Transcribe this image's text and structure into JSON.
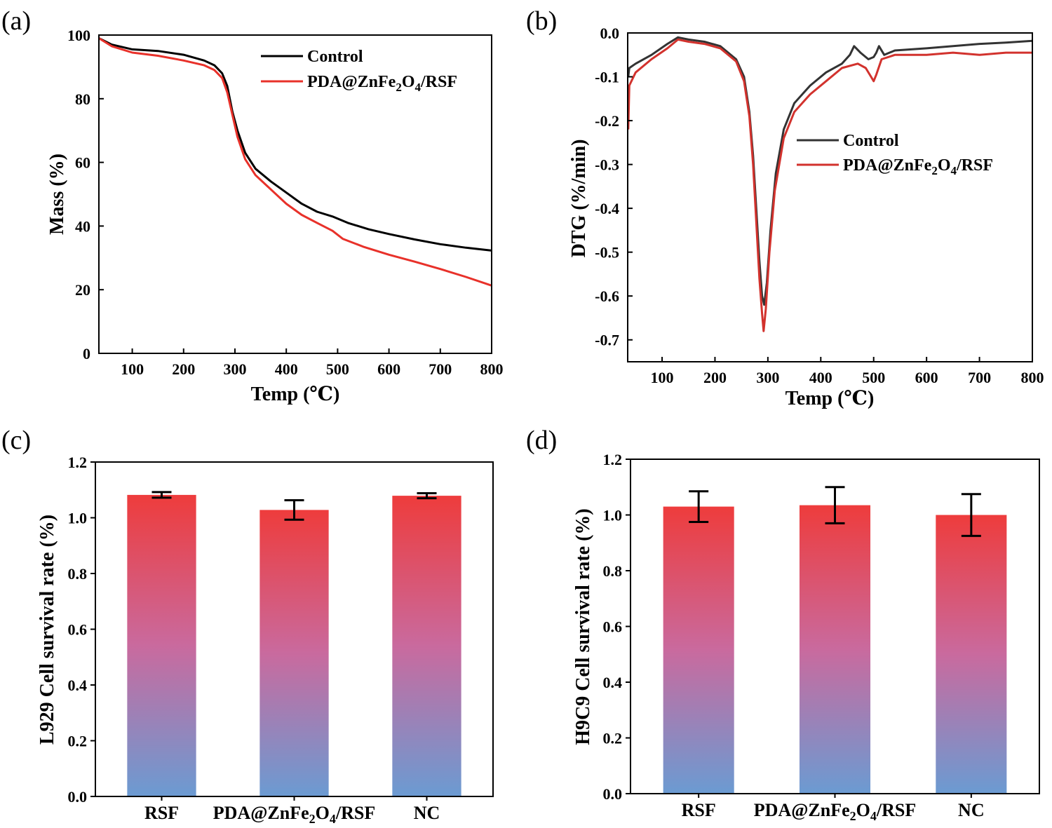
{
  "chart_data": [
    {
      "panel": "(a)",
      "type": "line",
      "xlabel": "Temp (℃)",
      "ylabel": "Mass (%)",
      "xlim": [
        35,
        800
      ],
      "ylim": [
        0,
        100
      ],
      "xticks": [
        100,
        200,
        300,
        400,
        500,
        600,
        700,
        800
      ],
      "yticks": [
        0,
        20,
        40,
        60,
        80,
        100
      ],
      "legend_position": "top-right",
      "series": [
        {
          "name": "Control",
          "color": "#000000",
          "points": [
            [
              35,
              99
            ],
            [
              60,
              97
            ],
            [
              100,
              95.5
            ],
            [
              150,
              95
            ],
            [
              200,
              93.8
            ],
            [
              240,
              92
            ],
            [
              260,
              90.5
            ],
            [
              275,
              88
            ],
            [
              285,
              84
            ],
            [
              295,
              76
            ],
            [
              305,
              70
            ],
            [
              320,
              63
            ],
            [
              340,
              58
            ],
            [
              370,
              54
            ],
            [
              400,
              50.5
            ],
            [
              430,
              47
            ],
            [
              460,
              44.5
            ],
            [
              490,
              43
            ],
            [
              520,
              41
            ],
            [
              560,
              39
            ],
            [
              600,
              37.5
            ],
            [
              650,
              35.8
            ],
            [
              700,
              34.3
            ],
            [
              750,
              33.2
            ],
            [
              800,
              32.3
            ]
          ]
        },
        {
          "name": "PDA@ZnFe2O4/RSF",
          "color": "#e8312a",
          "points": [
            [
              35,
              99
            ],
            [
              60,
              96.5
            ],
            [
              100,
              94.5
            ],
            [
              150,
              93.5
            ],
            [
              200,
              92
            ],
            [
              240,
              90.5
            ],
            [
              260,
              89
            ],
            [
              275,
              86.5
            ],
            [
              285,
              82
            ],
            [
              295,
              75
            ],
            [
              305,
              68
            ],
            [
              320,
              61
            ],
            [
              340,
              56
            ],
            [
              370,
              51.5
            ],
            [
              400,
              47
            ],
            [
              430,
              43.5
            ],
            [
              460,
              41
            ],
            [
              490,
              38.5
            ],
            [
              510,
              36
            ],
            [
              550,
              33.5
            ],
            [
              600,
              31
            ],
            [
              650,
              28.8
            ],
            [
              700,
              26.5
            ],
            [
              750,
              24
            ],
            [
              800,
              21.3
            ]
          ]
        }
      ]
    },
    {
      "panel": "(b)",
      "type": "line",
      "xlabel": "Temp (℃)",
      "ylabel": "DTG (%/min)",
      "xlim": [
        35,
        800
      ],
      "ylim": [
        -0.75,
        0.0
      ],
      "xticks": [
        100,
        200,
        300,
        400,
        500,
        600,
        700,
        800
      ],
      "yticks": [
        0.0,
        -0.1,
        -0.2,
        -0.3,
        -0.4,
        -0.5,
        -0.6,
        -0.7
      ],
      "legend_position": "center-right",
      "series": [
        {
          "name": "Control",
          "color": "#333333",
          "points": [
            [
              36,
              -0.1
            ],
            [
              38,
              -0.08
            ],
            [
              50,
              -0.07
            ],
            [
              80,
              -0.05
            ],
            [
              110,
              -0.025
            ],
            [
              130,
              -0.01
            ],
            [
              150,
              -0.015
            ],
            [
              180,
              -0.02
            ],
            [
              210,
              -0.03
            ],
            [
              240,
              -0.06
            ],
            [
              255,
              -0.1
            ],
            [
              265,
              -0.18
            ],
            [
              272,
              -0.28
            ],
            [
              278,
              -0.4
            ],
            [
              284,
              -0.52
            ],
            [
              289,
              -0.6
            ],
            [
              293,
              -0.62
            ],
            [
              298,
              -0.57
            ],
            [
              305,
              -0.45
            ],
            [
              315,
              -0.32
            ],
            [
              330,
              -0.22
            ],
            [
              350,
              -0.16
            ],
            [
              380,
              -0.12
            ],
            [
              410,
              -0.09
            ],
            [
              440,
              -0.07
            ],
            [
              455,
              -0.05
            ],
            [
              463,
              -0.03
            ],
            [
              475,
              -0.045
            ],
            [
              490,
              -0.06
            ],
            [
              500,
              -0.055
            ],
            [
              505,
              -0.045
            ],
            [
              510,
              -0.03
            ],
            [
              520,
              -0.05
            ],
            [
              540,
              -0.04
            ],
            [
              600,
              -0.035
            ],
            [
              650,
              -0.03
            ],
            [
              700,
              -0.025
            ],
            [
              750,
              -0.022
            ],
            [
              800,
              -0.018
            ]
          ]
        },
        {
          "name": "PDA@ZnFe2O4/RSF",
          "color": "#d2322d",
          "points": [
            [
              36,
              -0.22
            ],
            [
              38,
              -0.12
            ],
            [
              50,
              -0.09
            ],
            [
              80,
              -0.06
            ],
            [
              110,
              -0.035
            ],
            [
              130,
              -0.015
            ],
            [
              150,
              -0.02
            ],
            [
              180,
              -0.025
            ],
            [
              210,
              -0.035
            ],
            [
              240,
              -0.065
            ],
            [
              255,
              -0.11
            ],
            [
              265,
              -0.19
            ],
            [
              272,
              -0.3
            ],
            [
              278,
              -0.43
            ],
            [
              284,
              -0.56
            ],
            [
              289,
              -0.64
            ],
            [
              292,
              -0.68
            ],
            [
              296,
              -0.63
            ],
            [
              303,
              -0.5
            ],
            [
              313,
              -0.36
            ],
            [
              330,
              -0.24
            ],
            [
              350,
              -0.18
            ],
            [
              380,
              -0.14
            ],
            [
              410,
              -0.11
            ],
            [
              440,
              -0.08
            ],
            [
              470,
              -0.07
            ],
            [
              485,
              -0.08
            ],
            [
              495,
              -0.1
            ],
            [
              500,
              -0.11
            ],
            [
              505,
              -0.095
            ],
            [
              515,
              -0.06
            ],
            [
              540,
              -0.05
            ],
            [
              600,
              -0.05
            ],
            [
              650,
              -0.045
            ],
            [
              700,
              -0.05
            ],
            [
              750,
              -0.045
            ],
            [
              800,
              -0.045
            ]
          ]
        }
      ]
    },
    {
      "panel": "(c)",
      "type": "bar",
      "ylabel": "L929 Cell survival rate (%)",
      "ylim": [
        0,
        1.2
      ],
      "yticks": [
        0.0,
        0.2,
        0.4,
        0.6,
        0.8,
        1.0,
        1.2
      ],
      "categories": [
        "RSF",
        "PDA@ZnFe2O4/RSF",
        "NC"
      ],
      "values": [
        1.082,
        1.028,
        1.079
      ],
      "errors": [
        0.01,
        0.035,
        0.009
      ],
      "colors": {
        "top": "#ee3c3c",
        "mid": "#c96a9e",
        "bottom": "#6b9bd2"
      }
    },
    {
      "panel": "(d)",
      "type": "bar",
      "ylabel": "H9C9 Cell survival rate (%)",
      "ylim": [
        0,
        1.2
      ],
      "yticks": [
        0.0,
        0.2,
        0.4,
        0.6,
        0.8,
        1.0,
        1.2
      ],
      "categories": [
        "RSF",
        "PDA@ZnFe2O4/RSF",
        "NC"
      ],
      "values": [
        1.03,
        1.035,
        1.0
      ],
      "errors": [
        0.055,
        0.065,
        0.075
      ],
      "colors": {
        "top": "#ee3c3c",
        "mid": "#c96a9e",
        "bottom": "#6b9bd2"
      }
    }
  ]
}
